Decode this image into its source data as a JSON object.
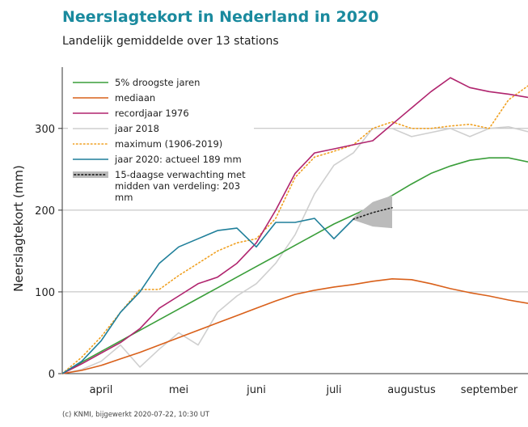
{
  "chart_data": {
    "type": "line",
    "title": "Neerslagtekort in Nederland in 2020",
    "subtitle": "Landelijk gemiddelde over 13 stations",
    "ylabel": "Neerslagtekort (mm)",
    "footer": "(c) KNMI, bijgewerkt 2020-07-22, 10:30 UT",
    "x": [
      0,
      0.25,
      0.5,
      0.75,
      1,
      1.25,
      1.5,
      1.75,
      2,
      2.25,
      2.5,
      2.75,
      3,
      3.25,
      3.5,
      3.75,
      4,
      4.25,
      4.5,
      4.75,
      5,
      5.25,
      5.5,
      5.75,
      6
    ],
    "xlim": [
      0,
      6
    ],
    "xticks": [
      {
        "value": 0.5,
        "label": "april"
      },
      {
        "value": 1.5,
        "label": "mei"
      },
      {
        "value": 2.5,
        "label": "juni"
      },
      {
        "value": 3.5,
        "label": "juli"
      },
      {
        "value": 4.5,
        "label": "augustus"
      },
      {
        "value": 5.5,
        "label": "september"
      }
    ],
    "ylim": [
      0,
      375
    ],
    "yticks": [
      0,
      100,
      200,
      300
    ],
    "grid": true,
    "legend": "upper left",
    "series": [
      {
        "name": "5% droogste jaren",
        "color": "#3a9e3a",
        "style": "solid",
        "values": [
          0,
          14,
          27,
          40,
          53,
          66,
          79,
          92,
          105,
          118,
          131,
          144,
          157,
          170,
          183,
          194,
          205,
          218,
          232,
          245,
          254,
          261,
          264,
          264,
          259
        ]
      },
      {
        "name": "mediaan",
        "color": "#d9601a",
        "style": "solid",
        "values": [
          0,
          4,
          10,
          18,
          26,
          35,
          44,
          53,
          62,
          71,
          80,
          89,
          97,
          102,
          106,
          109,
          113,
          116,
          115,
          110,
          104,
          99,
          95,
          90,
          86
        ]
      },
      {
        "name": "recordjaar 1976",
        "color": "#b0246e",
        "style": "solid",
        "values": [
          0,
          12,
          25,
          38,
          55,
          80,
          95,
          110,
          118,
          135,
          160,
          200,
          245,
          270,
          275,
          280,
          285,
          305,
          325,
          345,
          362,
          350,
          345,
          342,
          338
        ]
      },
      {
        "name": "jaar 2018",
        "color": "#cfcfcf",
        "style": "solid",
        "values": [
          0,
          5,
          15,
          35,
          8,
          30,
          50,
          35,
          75,
          95,
          110,
          135,
          170,
          220,
          255,
          270,
          300,
          300,
          290,
          295,
          300,
          290,
          300,
          302,
          296
        ]
      },
      {
        "name": "maximum (1906-2019)",
        "color": "#f0a020",
        "style": "dotted",
        "values": [
          0,
          20,
          45,
          75,
          103,
          103,
          120,
          135,
          150,
          160,
          165,
          190,
          240,
          265,
          272,
          280,
          300,
          308,
          300,
          300,
          303,
          305,
          300,
          335,
          352
        ]
      },
      {
        "name": "jaar 2020: actueel 189 mm",
        "color": "#1f7f9a",
        "style": "solid",
        "values": [
          0,
          15,
          40,
          75,
          100,
          135,
          155,
          165,
          175,
          178,
          155,
          185,
          185,
          190,
          165,
          189,
          null,
          null,
          null,
          null,
          null,
          null,
          null,
          null,
          null
        ]
      },
      {
        "name": "15-daagse verwachting met midden van verdeling: 203 mm",
        "color": "#222222",
        "style": "forecast",
        "band_color": "#bbbbbb",
        "values": [
          null,
          null,
          null,
          null,
          null,
          null,
          null,
          null,
          null,
          null,
          null,
          null,
          null,
          null,
          null,
          189,
          197,
          203,
          null,
          null,
          null,
          null,
          null,
          null,
          null
        ],
        "band_low": [
          null,
          null,
          null,
          null,
          null,
          null,
          null,
          null,
          null,
          null,
          null,
          null,
          null,
          null,
          null,
          188,
          180,
          178,
          null,
          null,
          null,
          null,
          null,
          null,
          null
        ],
        "band_high": [
          null,
          null,
          null,
          null,
          null,
          null,
          null,
          null,
          null,
          null,
          null,
          null,
          null,
          null,
          null,
          191,
          210,
          218,
          null,
          null,
          null,
          null,
          null,
          null,
          null
        ]
      }
    ]
  }
}
